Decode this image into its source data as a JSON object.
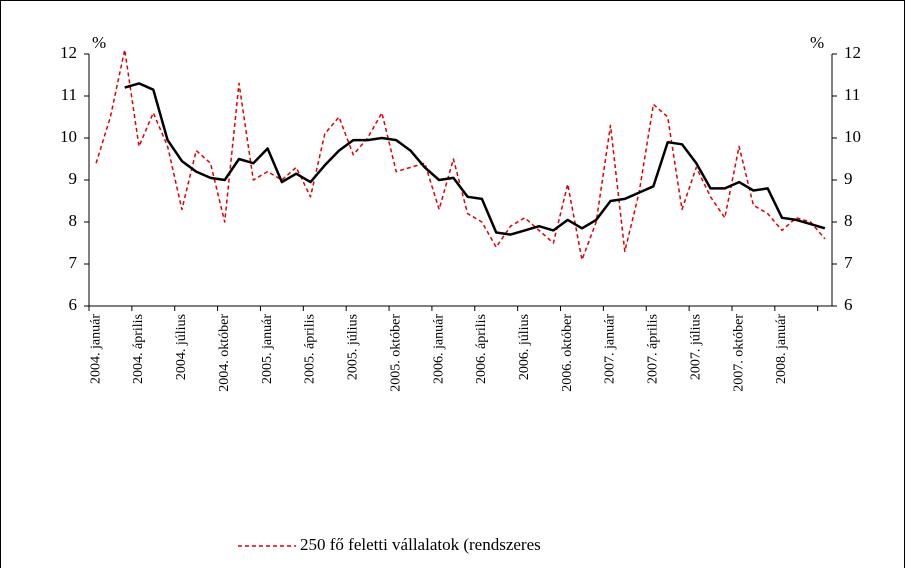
{
  "chart_data": {
    "type": "line",
    "categories": [
      "2004. január",
      null,
      null,
      "2004. április",
      null,
      null,
      "2004. július",
      null,
      null,
      "2004. október",
      null,
      null,
      "2005. január",
      null,
      null,
      "2005. április",
      null,
      null,
      "2005. július",
      null,
      null,
      "2005. október",
      null,
      null,
      "2006. január",
      null,
      null,
      "2006. április",
      null,
      null,
      "2006. július",
      null,
      null,
      "2006. október",
      null,
      null,
      "2007. január",
      null,
      null,
      "2007. április",
      null,
      null,
      "2007. július",
      null,
      null,
      "2007. október",
      null,
      null,
      "2008. január",
      null,
      null,
      null
    ],
    "series": [
      {
        "name": "250 fő feletti vállalatok (rendszeres",
        "color": "#e00000",
        "dash": true,
        "values": [
          9.4,
          10.5,
          12.1,
          9.8,
          10.6,
          9.8,
          8.3,
          9.7,
          9.4,
          8.0,
          11.3,
          9.0,
          9.2,
          9.0,
          9.3,
          8.6,
          10.1,
          10.5,
          9.6,
          10.0,
          10.6,
          9.2,
          9.3,
          9.4,
          8.3,
          9.5,
          8.2,
          8.0,
          7.4,
          7.9,
          8.1,
          7.8,
          7.5,
          8.9,
          7.1,
          8.0,
          10.3,
          7.3,
          8.7,
          10.8,
          10.5,
          8.3,
          9.3,
          8.6,
          8.1,
          9.8,
          8.4,
          8.2,
          7.8,
          8.1,
          8.0,
          7.6
        ]
      },
      {
        "color": "#000000",
        "dash": false,
        "values": [
          null,
          null,
          11.2,
          11.3,
          11.15,
          9.95,
          9.45,
          9.2,
          9.05,
          9.0,
          9.5,
          9.4,
          9.75,
          8.95,
          9.15,
          8.95,
          9.35,
          9.7,
          9.95,
          9.95,
          10.0,
          9.95,
          9.7,
          9.3,
          9.0,
          9.05,
          8.6,
          8.55,
          7.75,
          7.7,
          7.8,
          7.9,
          7.8,
          8.05,
          7.85,
          8.05,
          8.5,
          8.55,
          8.7,
          8.85,
          9.9,
          9.85,
          9.4,
          8.8,
          8.8,
          8.95,
          8.75,
          8.8,
          8.1,
          8.05,
          7.95,
          7.85
        ]
      }
    ],
    "y_unit": "%",
    "y2_unit": "%",
    "ylim": [
      6,
      12
    ],
    "yticks": [
      6,
      7,
      8,
      9,
      10,
      11,
      12
    ],
    "y2lim": [
      6,
      12
    ],
    "y2ticks": [
      6,
      7,
      8,
      9,
      10,
      11,
      12
    ]
  }
}
